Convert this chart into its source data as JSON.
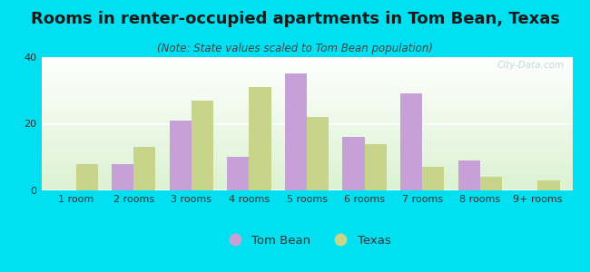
{
  "title": "Rooms in renter-occupied apartments in Tom Bean, Texas",
  "subtitle": "(Note: State values scaled to Tom Bean population)",
  "categories": [
    "1 room",
    "2 rooms",
    "3 rooms",
    "4 rooms",
    "5 rooms",
    "6 rooms",
    "7 rooms",
    "8 rooms",
    "9+ rooms"
  ],
  "tom_bean": [
    0,
    8,
    21,
    10,
    35,
    16,
    29,
    9,
    0
  ],
  "texas": [
    8,
    13,
    27,
    31,
    22,
    14,
    7,
    4,
    3
  ],
  "tom_bean_color": "#c8a0d8",
  "texas_color": "#c8d48a",
  "background_outer": "#00e0f0",
  "ylim": [
    0,
    40
  ],
  "yticks": [
    0,
    20,
    40
  ],
  "watermark": "City-Data.com",
  "bar_width": 0.38,
  "title_fontsize": 13,
  "subtitle_fontsize": 8.5,
  "tick_fontsize": 8,
  "legend_fontsize": 9.5
}
